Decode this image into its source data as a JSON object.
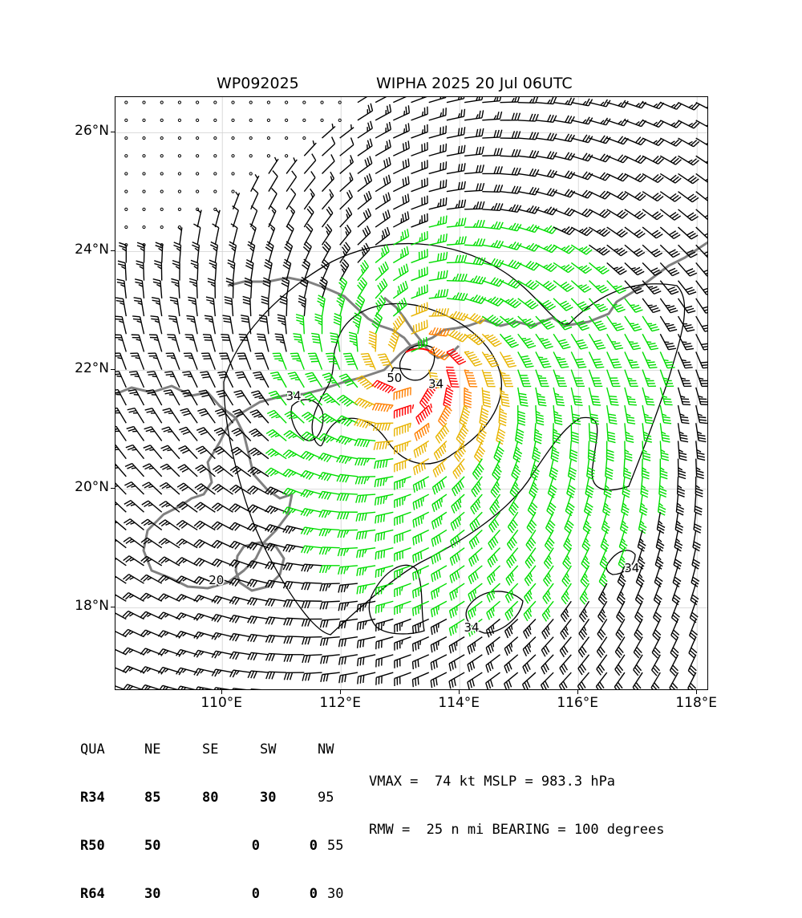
{
  "header": {
    "storm_id": "WP092025",
    "storm_title": "WIPHA 2025 20 Jul 06UTC"
  },
  "map": {
    "lon_range": [
      108.2,
      118.2
    ],
    "lat_range": [
      16.6,
      26.6
    ],
    "lat_ticks": [
      {
        "value": 18,
        "label": "18°N"
      },
      {
        "value": 20,
        "label": "20°N"
      },
      {
        "value": 22,
        "label": "22°N"
      },
      {
        "value": 24,
        "label": "24°N"
      },
      {
        "value": 26,
        "label": "26°N"
      }
    ],
    "lon_ticks": [
      {
        "value": 110,
        "label": "110°E"
      },
      {
        "value": 112,
        "label": "112°E"
      },
      {
        "value": 114,
        "label": "114°E"
      },
      {
        "value": 116,
        "label": "116°E"
      },
      {
        "value": 118,
        "label": "118°E"
      }
    ],
    "grid": true,
    "center": {
      "lon": 113.2,
      "lat": 22.05
    },
    "contour_labels": [
      {
        "text": "20",
        "lon": 109.9,
        "lat": 18.4
      },
      {
        "text": "34",
        "lon": 111.2,
        "lat": 21.5
      },
      {
        "text": "34",
        "lon": 113.6,
        "lat": 21.7
      },
      {
        "text": "34",
        "lon": 114.2,
        "lat": 17.6
      },
      {
        "text": "34",
        "lon": 116.9,
        "lat": 18.6
      },
      {
        "text": "50",
        "lon": 112.9,
        "lat": 21.8
      }
    ],
    "colors": {
      "calm": "#000000",
      "below_34": "#000000",
      "r34": "#00dd00",
      "r50": "#e8b400",
      "r64": "#ff7f00",
      "max": "#ff0000",
      "coast": "#808080",
      "grid": "#d0d0d0"
    }
  },
  "wind_radii": {
    "headers": [
      "QUA",
      "NE",
      "SE",
      "SW",
      "NW"
    ],
    "rows": [
      {
        "label": "R34",
        "values": [
          "85",
          "80",
          "30",
          "95"
        ]
      },
      {
        "label": "R50",
        "values": [
          "50",
          "0",
          "0",
          "55"
        ]
      },
      {
        "label": "R64",
        "values": [
          "30",
          "0",
          "0",
          "30"
        ]
      }
    ]
  },
  "stats": {
    "line1": "VMAX =  74 kt MSLP = 983.3 hPa",
    "line2": "RMW =  25 n mi BEARING = 100 degrees"
  }
}
